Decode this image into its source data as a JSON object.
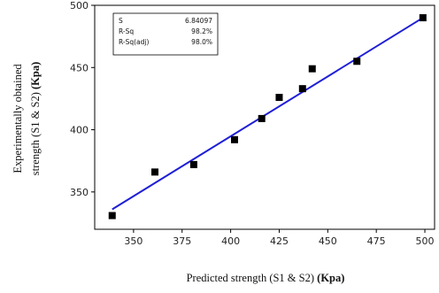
{
  "chart_data": {
    "type": "scatter",
    "xlabel": "Predicted strength (S1 & S2)",
    "xlabel_unit": "(Kpa)",
    "ylabel_line1": "Experimentally obtained",
    "ylabel_line2": "strength (S1 & S2)",
    "ylabel_unit": "(Kpa)",
    "xlim": [
      330,
      505
    ],
    "ylim": [
      320,
      500
    ],
    "xticks": [
      350,
      375,
      400,
      425,
      450,
      475,
      500
    ],
    "yticks": [
      350,
      400,
      450,
      500
    ],
    "points": [
      {
        "x": 339,
        "y": 331
      },
      {
        "x": 361,
        "y": 366
      },
      {
        "x": 381,
        "y": 372
      },
      {
        "x": 402,
        "y": 392
      },
      {
        "x": 416,
        "y": 409
      },
      {
        "x": 425,
        "y": 426
      },
      {
        "x": 437,
        "y": 433
      },
      {
        "x": 442,
        "y": 449
      },
      {
        "x": 465,
        "y": 455
      },
      {
        "x": 499,
        "y": 490
      }
    ],
    "fit_line": {
      "x": [
        339,
        499
      ],
      "y": [
        336,
        490
      ]
    },
    "stats": [
      {
        "label": "S",
        "value": "6.84097"
      },
      {
        "label": "R-Sq",
        "value": "98.2%"
      },
      {
        "label": "R-Sq(adj)",
        "value": "98.0%"
      }
    ],
    "colors": {
      "points": "#000000",
      "fit_line": "#1f1fd6",
      "frame": "#000000"
    }
  }
}
